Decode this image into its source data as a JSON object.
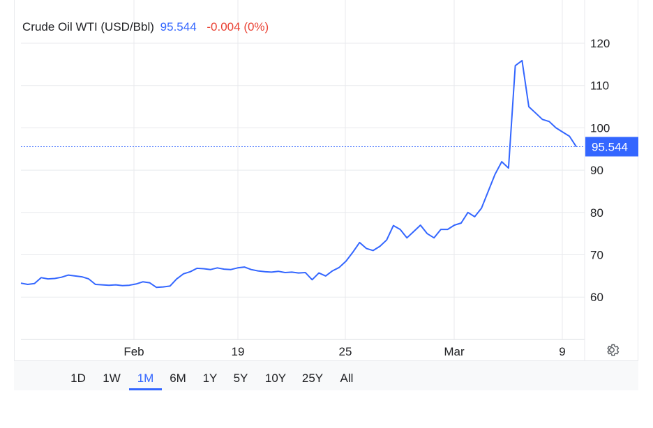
{
  "legend": {
    "name": "Crude Oil WTI (USD/Bbl)",
    "price": "95.544",
    "change": "-0.004 (0%)"
  },
  "colors": {
    "line": "#3366ff",
    "negative": "#ea4335",
    "grid": "#e8eaed",
    "badge": "#3366ff"
  },
  "current_price_label": "95.544",
  "ranges": {
    "items": [
      {
        "label": "1D",
        "active": false
      },
      {
        "label": "1W",
        "active": false
      },
      {
        "label": "1M",
        "active": true
      },
      {
        "label": "6M",
        "active": false
      },
      {
        "label": "1Y",
        "active": false
      },
      {
        "label": "5Y",
        "active": false
      },
      {
        "label": "10Y",
        "active": false
      },
      {
        "label": "25Y",
        "active": false
      },
      {
        "label": "All",
        "active": false
      }
    ]
  },
  "settings_icon": "gear-icon",
  "chart_data": {
    "type": "line",
    "title": "Crude Oil WTI (USD/Bbl)",
    "ylim": [
      50,
      123
    ],
    "y_ticks": [
      60,
      70,
      80,
      90,
      100,
      110,
      120
    ],
    "x_ticks": [
      "Feb",
      "19",
      "25",
      "Mar",
      "9"
    ],
    "grid": true,
    "current_value": 95.544,
    "series": [
      {
        "name": "Crude Oil WTI",
        "x": [
          0,
          1,
          2,
          3,
          4,
          5,
          6,
          7,
          8,
          9,
          10,
          11,
          12,
          13,
          14,
          15,
          16,
          17,
          18,
          19,
          20,
          21,
          22,
          23,
          24,
          25,
          26,
          27,
          28,
          29,
          30,
          31,
          32,
          33,
          34,
          35,
          36,
          37,
          38,
          39,
          40,
          41,
          42,
          43,
          44,
          45,
          46,
          47,
          48,
          49,
          50,
          51,
          52,
          53,
          54,
          55,
          56,
          57,
          58,
          59,
          60,
          61,
          62,
          63,
          64,
          65,
          66,
          67,
          68,
          69,
          70,
          71,
          72,
          73,
          74,
          75,
          76,
          77,
          78,
          79,
          80,
          81,
          82
        ],
        "values": [
          63.3,
          63.0,
          63.2,
          64.6,
          64.3,
          64.4,
          64.7,
          65.2,
          65.0,
          64.8,
          64.3,
          63.0,
          62.9,
          62.8,
          62.9,
          62.7,
          62.8,
          63.1,
          63.6,
          63.4,
          62.3,
          62.4,
          62.6,
          64.3,
          65.5,
          66.0,
          66.8,
          66.7,
          66.5,
          66.9,
          66.6,
          66.5,
          66.9,
          67.1,
          66.5,
          66.2,
          66.0,
          65.9,
          66.1,
          65.8,
          65.9,
          65.7,
          65.8,
          64.1,
          65.7,
          65.0,
          66.2,
          67.0,
          68.5,
          70.6,
          72.9,
          71.5,
          71.0,
          72.0,
          73.5,
          76.9,
          76.0,
          74.0,
          75.5,
          77.0,
          75.0,
          74.0,
          76.0,
          76.0,
          77.0,
          77.5,
          80.0,
          79.0,
          81.0,
          85.0,
          89.0,
          92.0,
          90.5,
          114.7,
          115.9,
          105.0,
          103.5,
          102.0,
          101.5,
          100.0,
          99.0,
          98.0,
          95.544
        ]
      }
    ]
  }
}
